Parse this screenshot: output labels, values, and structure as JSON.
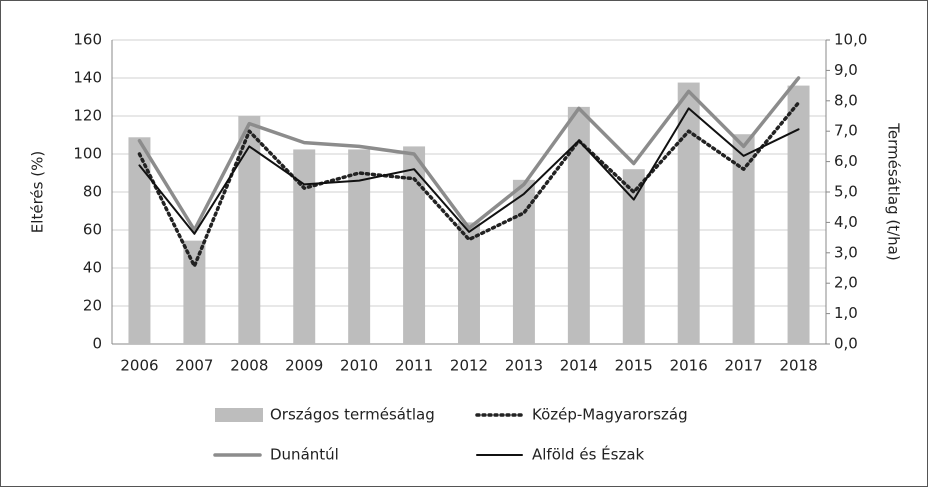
{
  "chart_data": {
    "type": "bar_line",
    "categories": [
      "2006",
      "2007",
      "2008",
      "2009",
      "2010",
      "2011",
      "2012",
      "2013",
      "2014",
      "2015",
      "2016",
      "2017",
      "2018"
    ],
    "ylabel": "Eltérés (%)",
    "y2label": "Termésátlag (t/ha)",
    "ylim": [
      0,
      160
    ],
    "yticks": [
      0,
      20,
      40,
      60,
      80,
      100,
      120,
      140,
      160
    ],
    "y2lim": [
      0,
      10
    ],
    "y2ticks": [
      {
        "value": 0,
        "label": "0,0"
      },
      {
        "value": 1,
        "label": "1,0"
      },
      {
        "value": 2,
        "label": "2,0"
      },
      {
        "value": 3,
        "label": "3,0"
      },
      {
        "value": 4,
        "label": "4,0"
      },
      {
        "value": 5,
        "label": "5,0"
      },
      {
        "value": 6,
        "label": "6,0"
      },
      {
        "value": 7,
        "label": "7,0"
      },
      {
        "value": 8,
        "label": "8,0"
      },
      {
        "value": 9,
        "label": "9,0"
      },
      {
        "value": 10,
        "label": "10,0"
      }
    ],
    "grid": true,
    "series": [
      {
        "name": "Országos termésátlag",
        "type": "bar",
        "axis": "y2",
        "color": "#bdbdbd",
        "values": [
          6.8,
          3.4,
          7.5,
          6.4,
          6.4,
          6.5,
          4.0,
          5.4,
          7.8,
          5.75,
          8.6,
          6.9,
          8.5
        ]
      },
      {
        "name": "Közép-Magyarország",
        "type": "line",
        "style": "dotted",
        "color": "#222222",
        "values": [
          100,
          41,
          112,
          82,
          90,
          87,
          55,
          69,
          107,
          80,
          112,
          92,
          127
        ]
      },
      {
        "name": "Dunántúl",
        "type": "line",
        "style": "solid",
        "color": "#8c8c8c",
        "values": [
          107,
          60,
          116,
          106,
          104,
          100,
          61,
          84,
          124,
          95,
          133,
          104,
          140
        ]
      },
      {
        "name": "Alföld és Észak",
        "type": "line",
        "style": "solid",
        "color": "#111111",
        "values": [
          94,
          58,
          104,
          84,
          86,
          92,
          59,
          79,
          107,
          76,
          124,
          99,
          113
        ]
      }
    ]
  }
}
